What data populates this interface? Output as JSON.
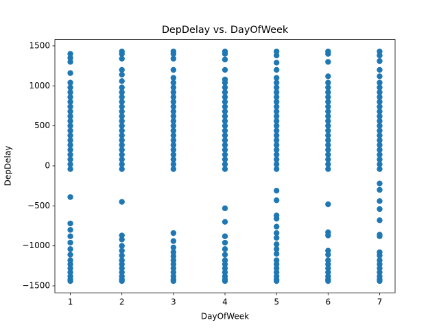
{
  "chart_data": {
    "type": "scatter",
    "title": "DepDelay vs. DayOfWeek",
    "x_label": "DayOfWeek",
    "y_label": "DepDelay",
    "color": "#1f77b4",
    "xlim": [
      0.7,
      7.3
    ],
    "ylim": [
      -1587,
      1580
    ],
    "grid": false,
    "xticks": [
      1,
      2,
      3,
      4,
      5,
      6,
      7
    ],
    "yticks": [
      {
        "value": -1500,
        "label": "−1500"
      },
      {
        "value": -1000,
        "label": "−1000"
      },
      {
        "value": -500,
        "label": "−500"
      },
      0,
      500,
      1000,
      1500
    ],
    "points": [
      [
        1,
        -40
      ],
      [
        1,
        20
      ],
      [
        1,
        80
      ],
      [
        1,
        140
      ],
      [
        1,
        200
      ],
      [
        1,
        260
      ],
      [
        1,
        320
      ],
      [
        1,
        380
      ],
      [
        1,
        440
      ],
      [
        1,
        500
      ],
      [
        1,
        560
      ],
      [
        1,
        620
      ],
      [
        1,
        680
      ],
      [
        1,
        740
      ],
      [
        1,
        800
      ],
      [
        1,
        860
      ],
      [
        1,
        920
      ],
      [
        1,
        980
      ],
      [
        1,
        1040
      ],
      [
        1,
        1160
      ],
      [
        1,
        1300
      ],
      [
        1,
        1350
      ],
      [
        1,
        1400
      ],
      [
        1,
        -390
      ],
      [
        1,
        -720
      ],
      [
        1,
        -800
      ],
      [
        1,
        -880
      ],
      [
        1,
        -960
      ],
      [
        1,
        -1040
      ],
      [
        1,
        -1110
      ],
      [
        1,
        -1180
      ],
      [
        1,
        -1230
      ],
      [
        1,
        -1280
      ],
      [
        1,
        -1330
      ],
      [
        1,
        -1380
      ],
      [
        1,
        -1420
      ],
      [
        1,
        -1440
      ],
      [
        2,
        -40
      ],
      [
        2,
        20
      ],
      [
        2,
        80
      ],
      [
        2,
        140
      ],
      [
        2,
        200
      ],
      [
        2,
        260
      ],
      [
        2,
        320
      ],
      [
        2,
        380
      ],
      [
        2,
        440
      ],
      [
        2,
        500
      ],
      [
        2,
        560
      ],
      [
        2,
        620
      ],
      [
        2,
        680
      ],
      [
        2,
        740
      ],
      [
        2,
        800
      ],
      [
        2,
        860
      ],
      [
        2,
        920
      ],
      [
        2,
        980
      ],
      [
        2,
        1060
      ],
      [
        2,
        1140
      ],
      [
        2,
        1200
      ],
      [
        2,
        1340
      ],
      [
        2,
        1400
      ],
      [
        2,
        1430
      ],
      [
        2,
        -450
      ],
      [
        2,
        -870
      ],
      [
        2,
        -920
      ],
      [
        2,
        -1000
      ],
      [
        2,
        -1060
      ],
      [
        2,
        -1120
      ],
      [
        2,
        -1180
      ],
      [
        2,
        -1230
      ],
      [
        2,
        -1280
      ],
      [
        2,
        -1330
      ],
      [
        2,
        -1380
      ],
      [
        2,
        -1420
      ],
      [
        2,
        -1440
      ],
      [
        3,
        -40
      ],
      [
        3,
        20
      ],
      [
        3,
        80
      ],
      [
        3,
        140
      ],
      [
        3,
        200
      ],
      [
        3,
        260
      ],
      [
        3,
        320
      ],
      [
        3,
        380
      ],
      [
        3,
        440
      ],
      [
        3,
        500
      ],
      [
        3,
        560
      ],
      [
        3,
        620
      ],
      [
        3,
        680
      ],
      [
        3,
        740
      ],
      [
        3,
        800
      ],
      [
        3,
        860
      ],
      [
        3,
        920
      ],
      [
        3,
        980
      ],
      [
        3,
        1040
      ],
      [
        3,
        1100
      ],
      [
        3,
        1200
      ],
      [
        3,
        1340
      ],
      [
        3,
        1400
      ],
      [
        3,
        1430
      ],
      [
        3,
        -840
      ],
      [
        3,
        -940
      ],
      [
        3,
        -1020
      ],
      [
        3,
        -1080
      ],
      [
        3,
        -1130
      ],
      [
        3,
        -1180
      ],
      [
        3,
        -1230
      ],
      [
        3,
        -1280
      ],
      [
        3,
        -1330
      ],
      [
        3,
        -1380
      ],
      [
        3,
        -1420
      ],
      [
        3,
        -1440
      ],
      [
        4,
        -40
      ],
      [
        4,
        20
      ],
      [
        4,
        80
      ],
      [
        4,
        140
      ],
      [
        4,
        200
      ],
      [
        4,
        260
      ],
      [
        4,
        320
      ],
      [
        4,
        380
      ],
      [
        4,
        440
      ],
      [
        4,
        500
      ],
      [
        4,
        560
      ],
      [
        4,
        620
      ],
      [
        4,
        680
      ],
      [
        4,
        740
      ],
      [
        4,
        800
      ],
      [
        4,
        860
      ],
      [
        4,
        920
      ],
      [
        4,
        980
      ],
      [
        4,
        1040
      ],
      [
        4,
        1080
      ],
      [
        4,
        1200
      ],
      [
        4,
        1330
      ],
      [
        4,
        1400
      ],
      [
        4,
        1430
      ],
      [
        4,
        -530
      ],
      [
        4,
        -700
      ],
      [
        4,
        -880
      ],
      [
        4,
        -960
      ],
      [
        4,
        -1040
      ],
      [
        4,
        -1110
      ],
      [
        4,
        -1180
      ],
      [
        4,
        -1230
      ],
      [
        4,
        -1280
      ],
      [
        4,
        -1330
      ],
      [
        4,
        -1380
      ],
      [
        4,
        -1420
      ],
      [
        4,
        -1440
      ],
      [
        5,
        -40
      ],
      [
        5,
        20
      ],
      [
        5,
        80
      ],
      [
        5,
        140
      ],
      [
        5,
        200
      ],
      [
        5,
        260
      ],
      [
        5,
        320
      ],
      [
        5,
        380
      ],
      [
        5,
        440
      ],
      [
        5,
        500
      ],
      [
        5,
        560
      ],
      [
        5,
        620
      ],
      [
        5,
        680
      ],
      [
        5,
        740
      ],
      [
        5,
        800
      ],
      [
        5,
        860
      ],
      [
        5,
        920
      ],
      [
        5,
        980
      ],
      [
        5,
        1040
      ],
      [
        5,
        1100
      ],
      [
        5,
        1200
      ],
      [
        5,
        1290
      ],
      [
        5,
        1380
      ],
      [
        5,
        1430
      ],
      [
        5,
        -310
      ],
      [
        5,
        -430
      ],
      [
        5,
        -620
      ],
      [
        5,
        -660
      ],
      [
        5,
        -760
      ],
      [
        5,
        -840
      ],
      [
        5,
        -900
      ],
      [
        5,
        -980
      ],
      [
        5,
        -1040
      ],
      [
        5,
        -1100
      ],
      [
        5,
        -1180
      ],
      [
        5,
        -1230
      ],
      [
        5,
        -1280
      ],
      [
        5,
        -1330
      ],
      [
        5,
        -1380
      ],
      [
        5,
        -1420
      ],
      [
        5,
        -1440
      ],
      [
        6,
        -40
      ],
      [
        6,
        20
      ],
      [
        6,
        80
      ],
      [
        6,
        140
      ],
      [
        6,
        200
      ],
      [
        6,
        260
      ],
      [
        6,
        320
      ],
      [
        6,
        380
      ],
      [
        6,
        440
      ],
      [
        6,
        500
      ],
      [
        6,
        560
      ],
      [
        6,
        620
      ],
      [
        6,
        680
      ],
      [
        6,
        740
      ],
      [
        6,
        800
      ],
      [
        6,
        860
      ],
      [
        6,
        920
      ],
      [
        6,
        980
      ],
      [
        6,
        1040
      ],
      [
        6,
        1120
      ],
      [
        6,
        1300
      ],
      [
        6,
        1400
      ],
      [
        6,
        1430
      ],
      [
        6,
        -480
      ],
      [
        6,
        -830
      ],
      [
        6,
        -870
      ],
      [
        6,
        -1060
      ],
      [
        6,
        -1110
      ],
      [
        6,
        -1180
      ],
      [
        6,
        -1230
      ],
      [
        6,
        -1280
      ],
      [
        6,
        -1330
      ],
      [
        6,
        -1380
      ],
      [
        6,
        -1420
      ],
      [
        6,
        -1440
      ],
      [
        7,
        -40
      ],
      [
        7,
        20
      ],
      [
        7,
        80
      ],
      [
        7,
        140
      ],
      [
        7,
        200
      ],
      [
        7,
        260
      ],
      [
        7,
        320
      ],
      [
        7,
        380
      ],
      [
        7,
        440
      ],
      [
        7,
        500
      ],
      [
        7,
        560
      ],
      [
        7,
        620
      ],
      [
        7,
        680
      ],
      [
        7,
        740
      ],
      [
        7,
        800
      ],
      [
        7,
        860
      ],
      [
        7,
        920
      ],
      [
        7,
        980
      ],
      [
        7,
        1040
      ],
      [
        7,
        1120
      ],
      [
        7,
        1200
      ],
      [
        7,
        1310
      ],
      [
        7,
        1380
      ],
      [
        7,
        1430
      ],
      [
        7,
        -220
      ],
      [
        7,
        -300
      ],
      [
        7,
        -440
      ],
      [
        7,
        -540
      ],
      [
        7,
        -680
      ],
      [
        7,
        -860
      ],
      [
        7,
        -880
      ],
      [
        7,
        -1080
      ],
      [
        7,
        -1120
      ],
      [
        7,
        -1180
      ],
      [
        7,
        -1230
      ],
      [
        7,
        -1280
      ],
      [
        7,
        -1330
      ],
      [
        7,
        -1380
      ],
      [
        7,
        -1420
      ],
      [
        7,
        -1440
      ]
    ]
  }
}
